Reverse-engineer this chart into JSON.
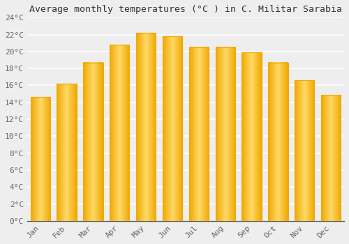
{
  "title": "Average monthly temperatures (°C ) in C. Militar Sarabia",
  "months": [
    "Jan",
    "Feb",
    "Mar",
    "Apr",
    "May",
    "Jun",
    "Jul",
    "Aug",
    "Sep",
    "Oct",
    "Nov",
    "Dec"
  ],
  "values": [
    14.6,
    16.2,
    18.7,
    20.8,
    22.2,
    21.8,
    20.5,
    20.5,
    19.9,
    18.7,
    16.6,
    14.9
  ],
  "bar_color_center": "#FFD966",
  "bar_color_edge": "#F0A800",
  "ylim": [
    0,
    24
  ],
  "yticks": [
    0,
    2,
    4,
    6,
    8,
    10,
    12,
    14,
    16,
    18,
    20,
    22,
    24
  ],
  "background_color": "#eeeeee",
  "grid_color": "#ffffff",
  "title_fontsize": 9.5,
  "tick_fontsize": 8,
  "font_family": "monospace",
  "bar_width": 0.75
}
